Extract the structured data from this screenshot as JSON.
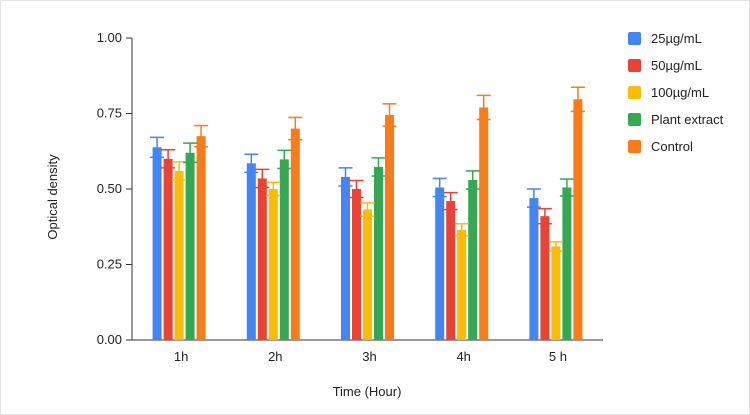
{
  "chart_data": {
    "type": "bar",
    "title": "",
    "xlabel": "Time (Hour)",
    "ylabel": "Optical density",
    "categories": [
      "1h",
      "2h",
      "3h",
      "4h",
      "5 h"
    ],
    "ylim": [
      0,
      1.0
    ],
    "yticks": [
      "0.00",
      "0.25",
      "0.50",
      "0.75",
      "1.00"
    ],
    "ytick_values": [
      0,
      0.25,
      0.5,
      0.75,
      1.0
    ],
    "grid": false,
    "legend_position": "right",
    "series": [
      {
        "name": "25µg/mL",
        "color": "#4285f4",
        "values": [
          0.638,
          0.585,
          0.54,
          0.505,
          0.47
        ],
        "errors": [
          0.033,
          0.03,
          0.03,
          0.03,
          0.03
        ]
      },
      {
        "name": "50µg/mL",
        "color": "#ea4335",
        "values": [
          0.6,
          0.535,
          0.5,
          0.46,
          0.41
        ],
        "errors": [
          0.03,
          0.03,
          0.028,
          0.028,
          0.025
        ]
      },
      {
        "name": "100µg/mL",
        "color": "#fbbc04",
        "values": [
          0.56,
          0.5,
          0.432,
          0.365,
          0.31
        ],
        "errors": [
          0.03,
          0.022,
          0.022,
          0.02,
          0.015
        ]
      },
      {
        "name": "Plant extract",
        "color": "#34a853",
        "values": [
          0.62,
          0.598,
          0.573,
          0.53,
          0.505
        ],
        "errors": [
          0.032,
          0.03,
          0.03,
          0.03,
          0.028
        ]
      },
      {
        "name": "Control",
        "color": "#fa7b17",
        "values": [
          0.675,
          0.7,
          0.745,
          0.77,
          0.797
        ],
        "errors": [
          0.035,
          0.037,
          0.037,
          0.04,
          0.04
        ]
      }
    ]
  }
}
